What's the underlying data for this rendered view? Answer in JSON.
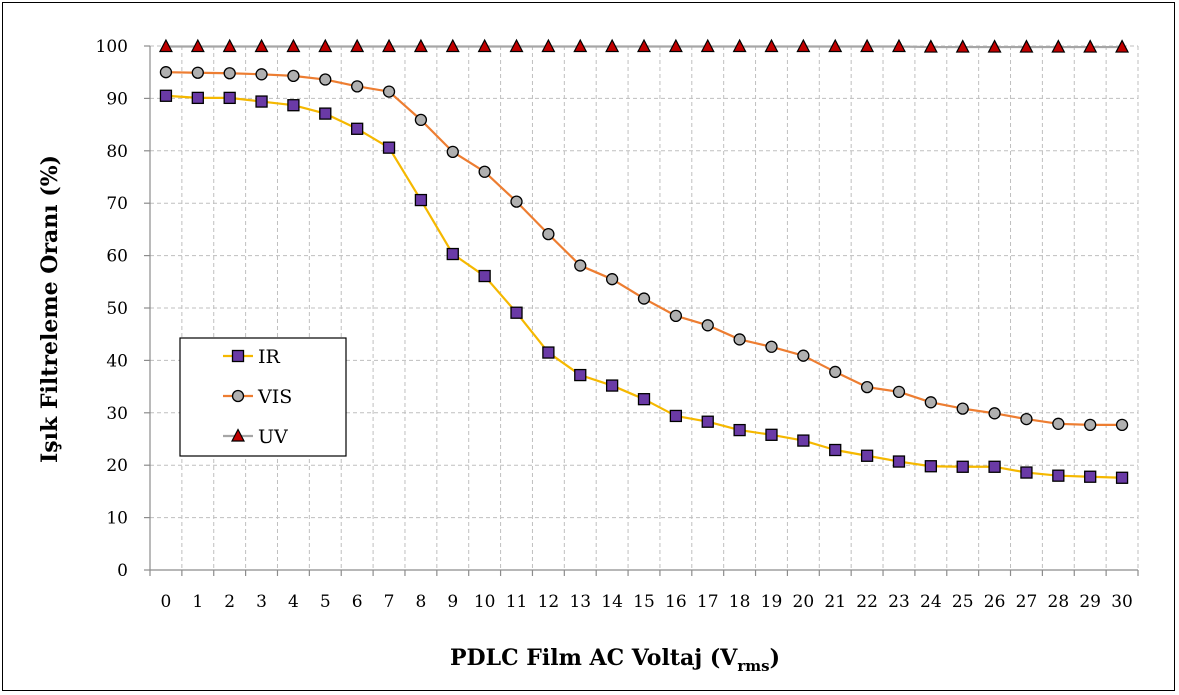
{
  "chart_data": {
    "type": "line",
    "title": "",
    "xlabel": "PDLC Film AC Voltaj (V",
    "xlabel_sub": "rms",
    "xlabel_end": ")",
    "ylabel": "Işık Filtreleme Oranı (%)",
    "ylim": [
      0,
      100
    ],
    "yticks": [
      0,
      10,
      20,
      30,
      40,
      50,
      60,
      70,
      80,
      90,
      100
    ],
    "x": [
      0,
      1,
      2,
      3,
      4,
      5,
      6,
      7,
      8,
      9,
      10,
      11,
      12,
      13,
      14,
      15,
      16,
      17,
      18,
      19,
      20,
      21,
      22,
      23,
      24,
      25,
      26,
      27,
      28,
      29,
      30
    ],
    "grid": true,
    "legend_position": "center-left",
    "series": [
      {
        "name": "IR",
        "line_color": "#f5b800",
        "marker": "square",
        "marker_color": "#6a3aa6",
        "values": [
          90.5,
          90.1,
          90.1,
          89.4,
          88.7,
          87.1,
          84.2,
          80.6,
          70.6,
          60.3,
          56.1,
          49.1,
          41.5,
          37.2,
          35.2,
          32.6,
          29.4,
          28.3,
          26.7,
          25.8,
          24.7,
          22.9,
          21.8,
          20.7,
          19.8,
          19.7,
          19.7,
          18.6,
          18.0,
          17.8,
          17.6
        ]
      },
      {
        "name": "VIS",
        "line_color": "#ed7d31",
        "marker": "circle",
        "marker_color": "#b0b0b0",
        "values": [
          95.0,
          94.9,
          94.8,
          94.6,
          94.3,
          93.6,
          92.3,
          91.3,
          85.9,
          79.8,
          76.0,
          70.3,
          64.1,
          58.1,
          55.5,
          51.8,
          48.5,
          46.7,
          44.0,
          42.6,
          40.9,
          37.8,
          34.9,
          34.0,
          32.0,
          30.8,
          29.9,
          28.8,
          27.9,
          27.7,
          27.7
        ]
      },
      {
        "name": "UV",
        "line_color": "#a6a6a6",
        "marker": "triangle",
        "marker_color": "#c00000",
        "values": [
          99.9,
          99.9,
          99.9,
          99.9,
          99.9,
          99.9,
          99.9,
          99.9,
          99.9,
          99.9,
          99.9,
          99.9,
          99.9,
          99.9,
          99.9,
          99.9,
          99.9,
          99.9,
          99.9,
          99.9,
          99.9,
          99.9,
          99.9,
          99.9,
          99.8,
          99.8,
          99.8,
          99.8,
          99.8,
          99.8,
          99.8
        ]
      }
    ]
  }
}
